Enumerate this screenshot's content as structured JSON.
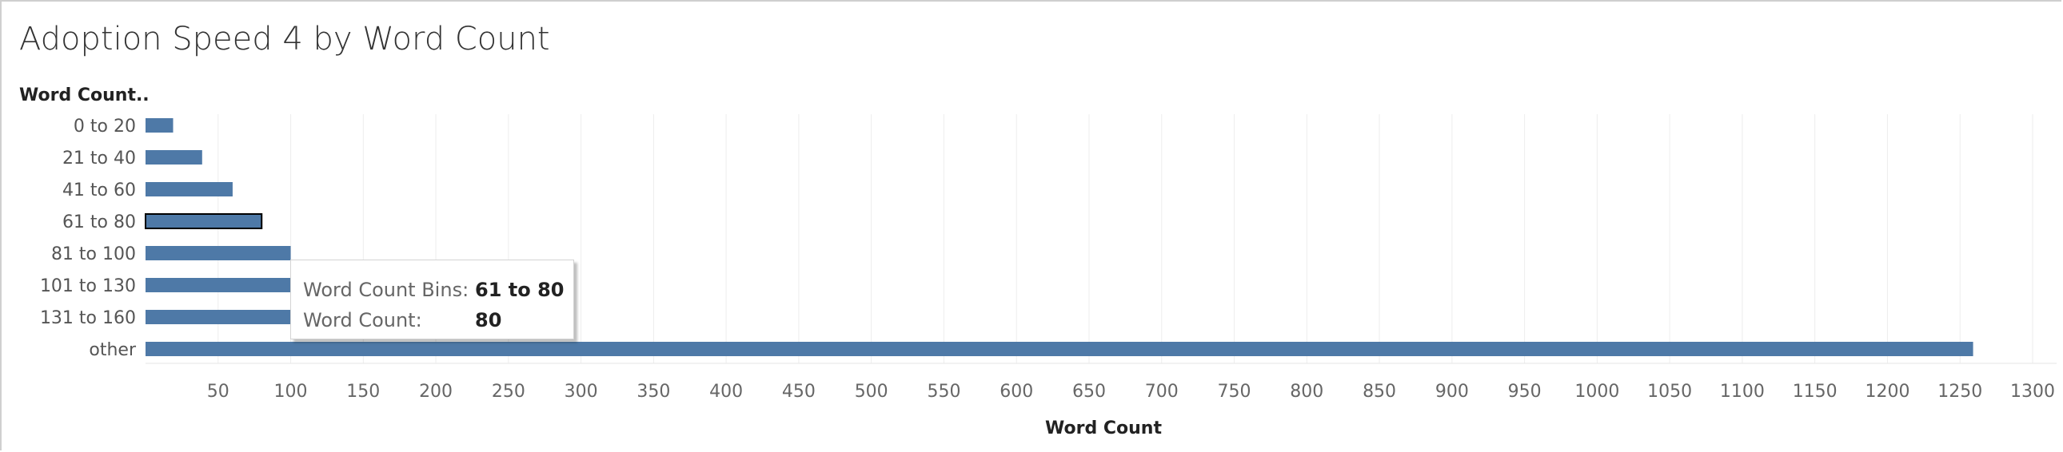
{
  "chart_data": {
    "type": "bar",
    "orientation": "horizontal",
    "title": "Adoption Speed 4 by Word Count",
    "row_header": "Word Count..",
    "xlabel": "Word Count",
    "categories": [
      "0 to 20",
      "21 to 40",
      "41 to 60",
      "61 to 80",
      "81 to 100",
      "101 to 130",
      "131 to 160",
      "other"
    ],
    "values": [
      19,
      39,
      60,
      80,
      100,
      100,
      100,
      1259
    ],
    "highlighted": "61 to 80",
    "xlim": [
      0,
      1320
    ],
    "xticks": [
      50,
      100,
      150,
      200,
      250,
      300,
      350,
      400,
      450,
      500,
      550,
      600,
      650,
      700,
      750,
      800,
      850,
      900,
      950,
      1000,
      1050,
      1100,
      1150,
      1200,
      1250,
      1300
    ],
    "grid": "vertical",
    "bar_color": "#4e79a7"
  },
  "tooltip": {
    "bin_key": "Word Count Bins:",
    "bin_value": "61 to 80",
    "count_key": "Word Count:",
    "count_value": "80"
  }
}
